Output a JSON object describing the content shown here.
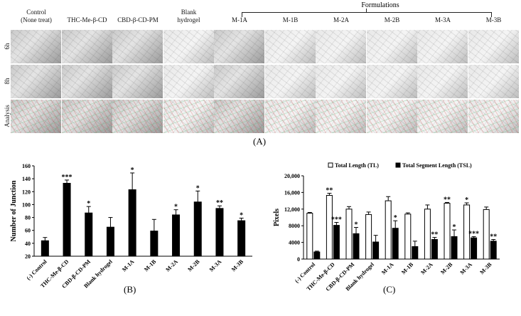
{
  "panel_a": {
    "label": "(A)",
    "group_label": "Formulations",
    "columns": [
      "Control\n(None treat)",
      "THC-Me-β-CD",
      "CBD-β-CD-PM",
      "Blank\nhydrogel",
      "M-1A",
      "M-1B",
      "M-2A",
      "M-2B",
      "M-3A",
      "M-3B"
    ],
    "rows": [
      "6h",
      "8h",
      "Analysis"
    ]
  },
  "chart_data": [
    {
      "type": "bar",
      "panel_label": "(B)",
      "categories": [
        "(-) Control",
        "THC-Me-β-CD",
        "CBD-β-CD-PM",
        "Blank hydrogel",
        "M-1A",
        "M-1B",
        "M-2A",
        "M-2B",
        "M-3A",
        "M-3B"
      ],
      "values": [
        44,
        133,
        87,
        65,
        123,
        59,
        84,
        104,
        94,
        75
      ],
      "errors": [
        5,
        5,
        10,
        15,
        26,
        18,
        8,
        17,
        4,
        4
      ],
      "significance": [
        "",
        "***",
        "*",
        "",
        "*",
        "",
        "*",
        "*",
        "**",
        "*"
      ],
      "ylabel": "Number of Junction",
      "ylim": [
        20,
        160
      ],
      "yticks": [
        "20",
        "40",
        "60",
        "80",
        "100",
        "120",
        "140",
        "160"
      ],
      "color": "#000000"
    },
    {
      "type": "bar",
      "panel_label": "(C)",
      "categories": [
        "(-) Control",
        "THC-Me-β-CD",
        "CBD-β-CD-PM",
        "Blank hydrogel",
        "M-1A",
        "M-1B",
        "M-2A",
        "M-2B",
        "M-3A",
        "M-3B"
      ],
      "series": [
        {
          "name": "Total Length (TL)",
          "values": [
            11000,
            15300,
            12000,
            10700,
            14000,
            10800,
            12000,
            13400,
            13000,
            11900
          ],
          "errors": [
            200,
            500,
            600,
            600,
            1000,
            300,
            1000,
            200,
            500,
            600
          ],
          "significance": [
            "",
            "**",
            "",
            "",
            "",
            "",
            "",
            "**",
            "*",
            ""
          ],
          "color": "#ffffff"
        },
        {
          "name": "Total Segment Length (TSL)",
          "values": [
            1700,
            8100,
            6100,
            4100,
            7400,
            3000,
            4700,
            5400,
            5100,
            4300
          ],
          "errors": [
            200,
            700,
            1500,
            1600,
            1800,
            1300,
            500,
            1600,
            300,
            400
          ],
          "significance": [
            "",
            "***",
            "*",
            "",
            "*",
            "",
            "**",
            "*",
            "***",
            "**"
          ],
          "color": "#000000"
        }
      ],
      "ylabel": "Pixels",
      "ylim": [
        0,
        20000
      ],
      "yticks": [
        "0",
        "4000",
        "8000",
        "12,000",
        "16,000",
        "20,000"
      ],
      "legend": "top"
    }
  ]
}
